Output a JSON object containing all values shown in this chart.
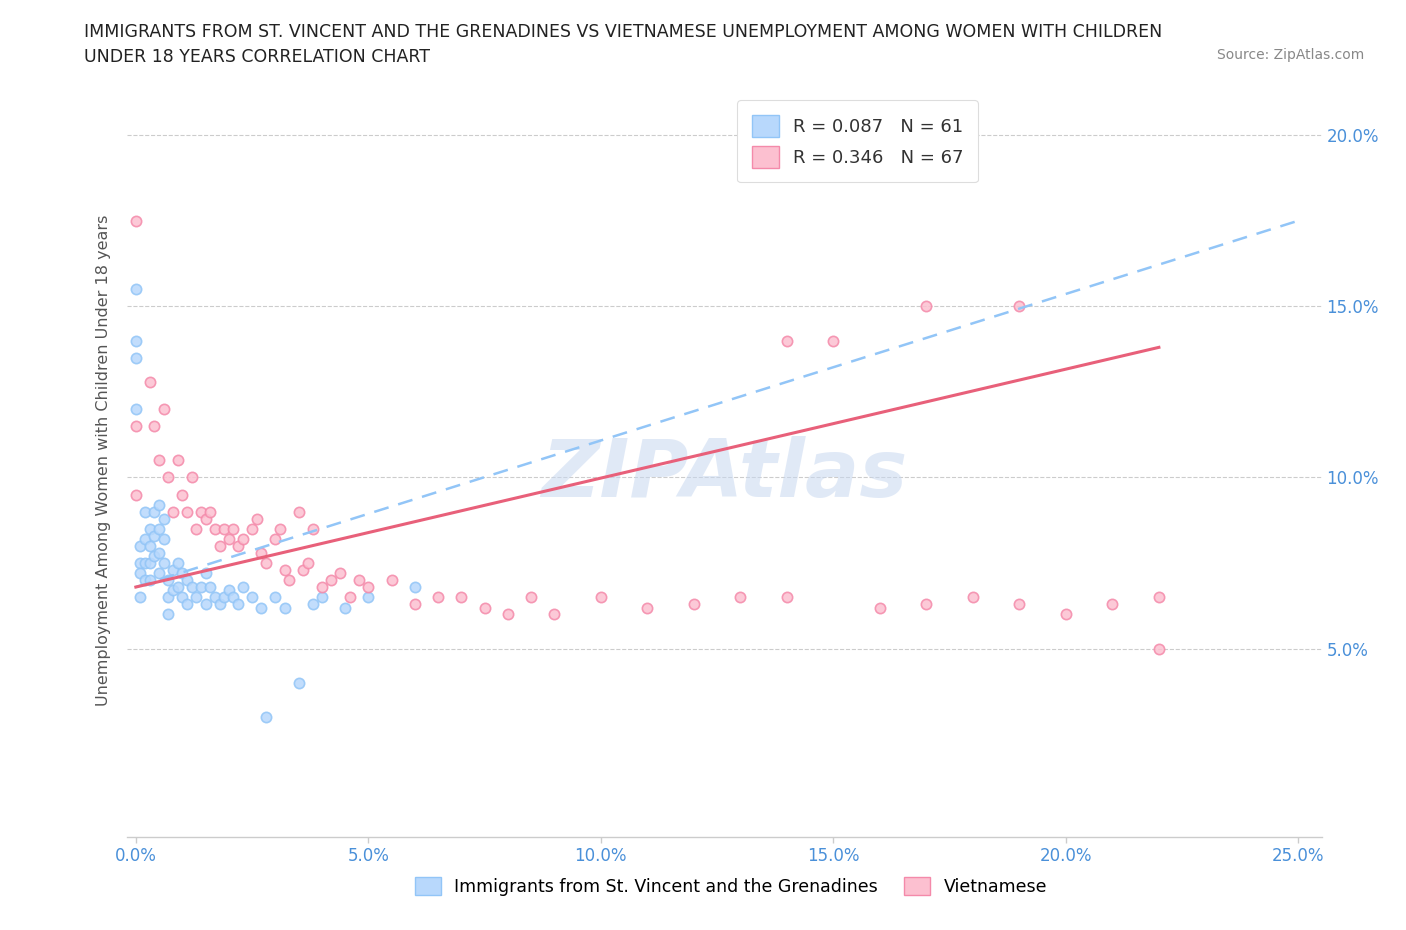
{
  "title_line1": "IMMIGRANTS FROM ST. VINCENT AND THE GRENADINES VS VIETNAMESE UNEMPLOYMENT AMONG WOMEN WITH CHILDREN",
  "title_line2": "UNDER 18 YEARS CORRELATION CHART",
  "source": "Source: ZipAtlas.com",
  "ylabel": "Unemployment Among Women with Children Under 18 years",
  "xlim": [
    -0.002,
    0.255
  ],
  "ylim": [
    -0.005,
    0.215
  ],
  "xticks": [
    0.0,
    0.05,
    0.1,
    0.15,
    0.2,
    0.25
  ],
  "yticks": [
    0.05,
    0.1,
    0.15,
    0.2
  ],
  "series1_color": "#92c5f7",
  "series2_color": "#f9a8c0",
  "trendline1_color": "#92c5f7",
  "trendline2_color": "#e8607a",
  "tick_color": "#4a90d9",
  "watermark": "ZIPAtlas",
  "legend1_label": "R = 0.087   N = 61",
  "legend2_label": "R = 0.346   N = 67",
  "bottom_legend1": "Immigrants from St. Vincent and the Grenadines",
  "bottom_legend2": "Vietnamese",
  "s1_x": [
    0.0,
    0.0,
    0.0,
    0.0,
    0.001,
    0.001,
    0.001,
    0.001,
    0.002,
    0.002,
    0.002,
    0.002,
    0.003,
    0.003,
    0.003,
    0.003,
    0.004,
    0.004,
    0.004,
    0.005,
    0.005,
    0.005,
    0.005,
    0.006,
    0.006,
    0.006,
    0.007,
    0.007,
    0.007,
    0.008,
    0.008,
    0.009,
    0.009,
    0.01,
    0.01,
    0.011,
    0.011,
    0.012,
    0.013,
    0.014,
    0.015,
    0.015,
    0.016,
    0.017,
    0.018,
    0.019,
    0.02,
    0.021,
    0.022,
    0.023,
    0.025,
    0.027,
    0.028,
    0.03,
    0.032,
    0.035,
    0.038,
    0.04,
    0.045,
    0.05,
    0.06
  ],
  "s1_y": [
    0.155,
    0.14,
    0.135,
    0.12,
    0.08,
    0.075,
    0.072,
    0.065,
    0.09,
    0.082,
    0.075,
    0.07,
    0.085,
    0.08,
    0.075,
    0.07,
    0.09,
    0.083,
    0.077,
    0.092,
    0.085,
    0.078,
    0.072,
    0.088,
    0.082,
    0.075,
    0.07,
    0.065,
    0.06,
    0.073,
    0.067,
    0.075,
    0.068,
    0.072,
    0.065,
    0.07,
    0.063,
    0.068,
    0.065,
    0.068,
    0.072,
    0.063,
    0.068,
    0.065,
    0.063,
    0.065,
    0.067,
    0.065,
    0.063,
    0.068,
    0.065,
    0.062,
    0.03,
    0.065,
    0.062,
    0.04,
    0.063,
    0.065,
    0.062,
    0.065,
    0.068
  ],
  "s2_x": [
    0.0,
    0.0,
    0.0,
    0.003,
    0.004,
    0.005,
    0.006,
    0.007,
    0.008,
    0.009,
    0.01,
    0.011,
    0.012,
    0.013,
    0.014,
    0.015,
    0.016,
    0.017,
    0.018,
    0.019,
    0.02,
    0.021,
    0.022,
    0.023,
    0.025,
    0.026,
    0.027,
    0.028,
    0.03,
    0.031,
    0.032,
    0.033,
    0.035,
    0.036,
    0.037,
    0.038,
    0.04,
    0.042,
    0.044,
    0.046,
    0.048,
    0.05,
    0.055,
    0.06,
    0.065,
    0.07,
    0.075,
    0.08,
    0.085,
    0.09,
    0.1,
    0.11,
    0.12,
    0.13,
    0.14,
    0.15,
    0.16,
    0.17,
    0.18,
    0.19,
    0.2,
    0.21,
    0.22,
    0.17,
    0.19,
    0.14,
    0.22
  ],
  "s2_y": [
    0.175,
    0.115,
    0.095,
    0.128,
    0.115,
    0.105,
    0.12,
    0.1,
    0.09,
    0.105,
    0.095,
    0.09,
    0.1,
    0.085,
    0.09,
    0.088,
    0.09,
    0.085,
    0.08,
    0.085,
    0.082,
    0.085,
    0.08,
    0.082,
    0.085,
    0.088,
    0.078,
    0.075,
    0.082,
    0.085,
    0.073,
    0.07,
    0.09,
    0.073,
    0.075,
    0.085,
    0.068,
    0.07,
    0.072,
    0.065,
    0.07,
    0.068,
    0.07,
    0.063,
    0.065,
    0.065,
    0.062,
    0.06,
    0.065,
    0.06,
    0.065,
    0.062,
    0.063,
    0.065,
    0.065,
    0.14,
    0.062,
    0.063,
    0.065,
    0.063,
    0.06,
    0.063,
    0.065,
    0.15,
    0.15,
    0.14,
    0.05
  ]
}
